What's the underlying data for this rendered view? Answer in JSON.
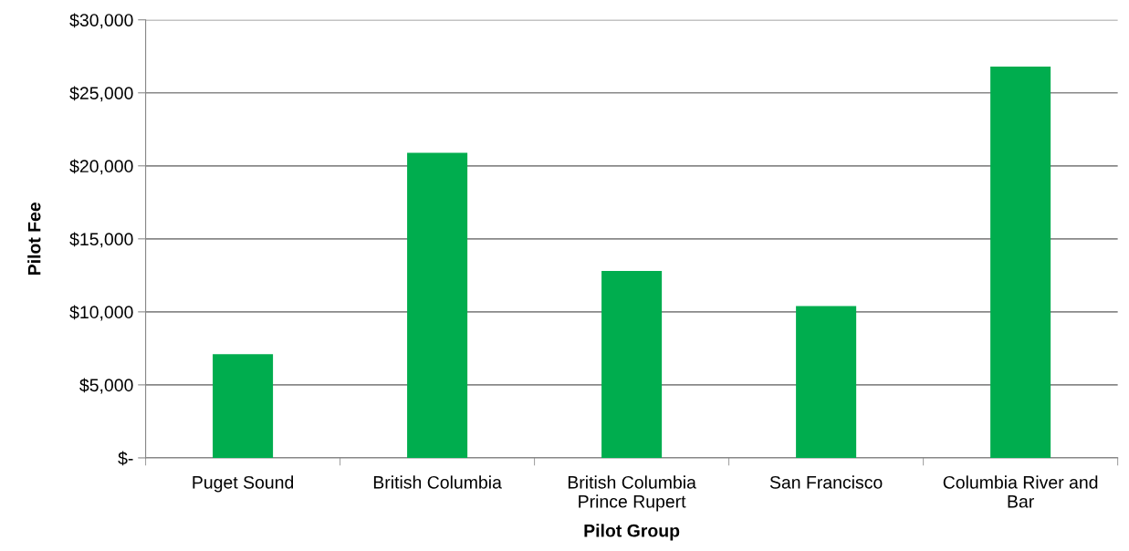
{
  "chart_data": {
    "type": "bar",
    "xlabel": "Pilot Group",
    "ylabel": "Pilot Fee",
    "categories": [
      "Puget Sound",
      "British Columbia",
      "British Columbia\nPrince Rupert",
      "San Francisco",
      "Columbia River and\nBar"
    ],
    "values": [
      7100,
      20900,
      12800,
      10400,
      26800
    ],
    "color": "#00ad4e",
    "ylim": [
      0,
      30000
    ],
    "yticks": [
      {
        "value": 0,
        "label": "$-"
      },
      {
        "value": 5000,
        "label": "$5,000"
      },
      {
        "value": 10000,
        "label": "$10,000"
      },
      {
        "value": 15000,
        "label": "$15,000"
      },
      {
        "value": 20000,
        "label": "$20,000"
      },
      {
        "value": 25000,
        "label": "$25,000"
      },
      {
        "value": 30000,
        "label": "$30,000"
      }
    ],
    "grid": "y"
  }
}
